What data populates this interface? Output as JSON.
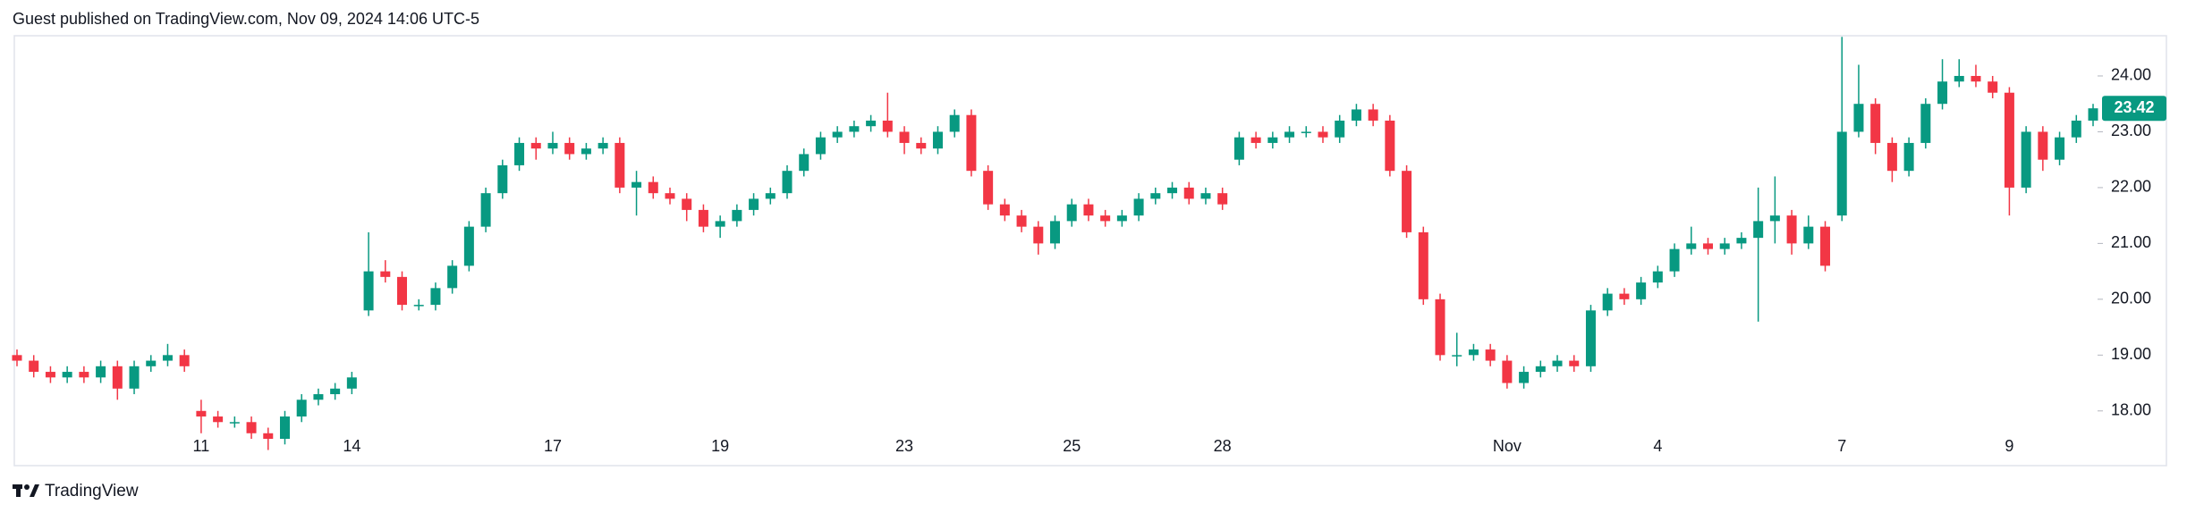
{
  "header": "Guest published on TradingView.com, Nov 09, 2024 14:06 UTC-5",
  "footer": "TradingView",
  "chart_data": {
    "type": "candlestick",
    "up_color": "#089981",
    "down_color": "#f23645",
    "grid": false,
    "x": [
      null,
      null,
      null,
      null,
      null,
      null,
      null,
      null,
      null,
      null,
      null,
      "11",
      null,
      null,
      null,
      null,
      null,
      null,
      null,
      null,
      "14",
      null,
      null,
      null,
      null,
      null,
      null,
      null,
      null,
      null,
      null,
      null,
      "17",
      null,
      null,
      null,
      null,
      null,
      null,
      null,
      null,
      null,
      "19",
      null,
      null,
      null,
      null,
      null,
      null,
      null,
      null,
      null,
      null,
      "23",
      null,
      null,
      null,
      null,
      null,
      null,
      null,
      null,
      null,
      "25",
      null,
      null,
      null,
      null,
      null,
      null,
      null,
      null,
      "28",
      null,
      null,
      null,
      null,
      null,
      null,
      null,
      null,
      null,
      null,
      null,
      null,
      null,
      null,
      null,
      null,
      "Nov",
      null,
      null,
      null,
      null,
      null,
      null,
      null,
      null,
      "4",
      null,
      null,
      null,
      null,
      null,
      null,
      null,
      null,
      null,
      null,
      "7",
      null,
      null,
      null,
      null,
      null,
      null,
      null,
      null,
      null,
      "9",
      null,
      null,
      null,
      null,
      null
    ],
    "open": [
      19.0,
      18.9,
      18.7,
      18.6,
      18.7,
      18.6,
      18.8,
      18.4,
      18.8,
      18.9,
      19.0,
      18.0,
      17.9,
      17.8,
      17.8,
      17.6,
      17.5,
      17.9,
      18.2,
      18.3,
      18.4,
      19.8,
      20.5,
      20.4,
      19.9,
      19.9,
      20.2,
      20.6,
      21.3,
      21.9,
      22.4,
      22.8,
      22.7,
      22.8,
      22.6,
      22.7,
      22.8,
      22.0,
      22.1,
      21.9,
      21.8,
      21.6,
      21.3,
      21.4,
      21.6,
      21.8,
      21.9,
      22.3,
      22.6,
      22.9,
      23.0,
      23.1,
      23.2,
      23.0,
      22.8,
      22.7,
      23.0,
      23.3,
      22.3,
      21.7,
      21.5,
      21.3,
      21.0,
      21.4,
      21.7,
      21.5,
      21.4,
      21.5,
      21.8,
      21.9,
      22.0,
      21.8,
      21.9,
      22.5,
      22.9,
      22.8,
      22.9,
      23.0,
      23.0,
      22.9,
      23.2,
      23.4,
      23.2,
      22.3,
      21.2,
      20.0,
      19.0,
      19.0,
      19.1,
      18.9,
      18.5,
      18.7,
      18.8,
      18.9,
      18.8,
      19.8,
      20.1,
      20.0,
      20.3,
      20.5,
      20.9,
      21.0,
      20.9,
      21.0,
      21.1,
      21.4,
      21.5,
      21.0,
      21.3,
      21.5,
      23.0,
      23.5,
      22.8,
      22.3,
      22.8,
      23.5,
      23.9,
      24.0,
      23.9,
      23.7,
      22.0,
      23.0,
      22.5,
      22.9,
      23.2
    ],
    "high": [
      19.1,
      19.0,
      18.8,
      18.8,
      18.8,
      18.9,
      18.9,
      18.9,
      19.0,
      19.2,
      19.1,
      18.2,
      18.0,
      17.9,
      17.9,
      17.7,
      18.0,
      18.3,
      18.4,
      18.5,
      18.7,
      21.2,
      20.7,
      20.5,
      20.0,
      20.3,
      20.7,
      21.4,
      22.0,
      22.5,
      22.9,
      22.9,
      23.0,
      22.9,
      22.8,
      22.9,
      22.9,
      22.3,
      22.2,
      22.0,
      21.9,
      21.7,
      21.5,
      21.7,
      21.9,
      22.0,
      22.4,
      22.7,
      23.0,
      23.1,
      23.2,
      23.3,
      23.7,
      23.1,
      22.9,
      23.1,
      23.4,
      23.4,
      22.4,
      21.8,
      21.6,
      21.4,
      21.5,
      21.8,
      21.8,
      21.6,
      21.6,
      21.9,
      22.0,
      22.1,
      22.1,
      22.0,
      22.0,
      23.0,
      23.0,
      23.0,
      23.1,
      23.1,
      23.1,
      23.3,
      23.5,
      23.5,
      23.3,
      22.4,
      21.3,
      20.1,
      19.4,
      19.2,
      19.2,
      19.0,
      18.8,
      18.9,
      19.0,
      19.0,
      19.9,
      20.2,
      20.2,
      20.4,
      20.6,
      21.0,
      21.3,
      21.1,
      21.1,
      21.2,
      22.0,
      22.2,
      21.6,
      21.5,
      21.4,
      24.7,
      24.2,
      23.6,
      22.9,
      22.9,
      23.6,
      24.3,
      24.3,
      24.2,
      24.0,
      23.8,
      23.1,
      23.1,
      23.0,
      23.3,
      23.5
    ],
    "low": [
      18.8,
      18.6,
      18.5,
      18.5,
      18.5,
      18.5,
      18.2,
      18.3,
      18.7,
      18.8,
      18.7,
      17.6,
      17.7,
      17.7,
      17.5,
      17.3,
      17.4,
      17.8,
      18.1,
      18.2,
      18.3,
      19.7,
      20.3,
      19.8,
      19.8,
      19.8,
      20.1,
      20.5,
      21.2,
      21.8,
      22.3,
      22.5,
      22.6,
      22.5,
      22.5,
      22.6,
      21.9,
      21.5,
      21.8,
      21.7,
      21.4,
      21.2,
      21.1,
      21.3,
      21.5,
      21.7,
      21.8,
      22.2,
      22.5,
      22.8,
      22.9,
      23.0,
      22.9,
      22.6,
      22.6,
      22.6,
      22.9,
      22.2,
      21.6,
      21.4,
      21.2,
      20.8,
      20.9,
      21.3,
      21.4,
      21.3,
      21.3,
      21.4,
      21.7,
      21.8,
      21.7,
      21.7,
      21.6,
      22.4,
      22.7,
      22.7,
      22.8,
      22.9,
      22.8,
      22.8,
      23.1,
      23.1,
      22.2,
      21.1,
      19.9,
      18.9,
      18.8,
      18.9,
      18.8,
      18.4,
      18.4,
      18.6,
      18.7,
      18.7,
      18.7,
      19.7,
      19.9,
      19.9,
      20.2,
      20.4,
      20.8,
      20.8,
      20.8,
      20.9,
      19.6,
      21.0,
      20.8,
      20.9,
      20.5,
      21.4,
      22.9,
      22.6,
      22.1,
      22.2,
      22.7,
      23.4,
      23.8,
      23.8,
      23.6,
      21.5,
      21.9,
      22.3,
      22.4,
      22.8,
      23.1
    ],
    "close": [
      18.9,
      18.7,
      18.6,
      18.7,
      18.6,
      18.8,
      18.4,
      18.8,
      18.9,
      19.0,
      18.8,
      17.9,
      17.8,
      17.8,
      17.6,
      17.5,
      17.9,
      18.2,
      18.3,
      18.4,
      18.6,
      20.5,
      20.4,
      19.9,
      19.9,
      20.2,
      20.6,
      21.3,
      21.9,
      22.4,
      22.8,
      22.7,
      22.8,
      22.6,
      22.7,
      22.8,
      22.0,
      22.1,
      21.9,
      21.8,
      21.6,
      21.3,
      21.4,
      21.6,
      21.8,
      21.9,
      22.3,
      22.6,
      22.9,
      23.0,
      23.1,
      23.2,
      23.0,
      22.8,
      22.7,
      23.0,
      23.3,
      22.3,
      21.7,
      21.5,
      21.3,
      21.0,
      21.4,
      21.7,
      21.5,
      21.4,
      21.5,
      21.8,
      21.9,
      22.0,
      21.8,
      21.9,
      21.7,
      22.9,
      22.8,
      22.9,
      23.0,
      23.0,
      22.9,
      23.2,
      23.4,
      23.2,
      22.3,
      21.2,
      20.0,
      19.0,
      19.0,
      19.1,
      18.9,
      18.5,
      18.7,
      18.8,
      18.9,
      18.8,
      19.8,
      20.1,
      20.0,
      20.3,
      20.5,
      20.9,
      21.0,
      20.9,
      21.0,
      21.1,
      21.4,
      21.5,
      21.0,
      21.3,
      20.6,
      23.0,
      23.5,
      22.8,
      22.3,
      22.8,
      23.5,
      23.9,
      24.0,
      23.9,
      23.7,
      22.0,
      23.0,
      22.5,
      22.9,
      23.2,
      23.42
    ],
    "ylim": [
      17.02,
      24.72
    ],
    "yticks": [
      {
        "value": 18,
        "label": "18.00"
      },
      {
        "value": 19,
        "label": "19.00"
      },
      {
        "value": 20,
        "label": "20.00"
      },
      {
        "value": 21,
        "label": "21.00"
      },
      {
        "value": 22,
        "label": "22.00"
      },
      {
        "value": 23,
        "label": "23.00"
      },
      {
        "value": 24,
        "label": "24.00"
      }
    ]
  }
}
